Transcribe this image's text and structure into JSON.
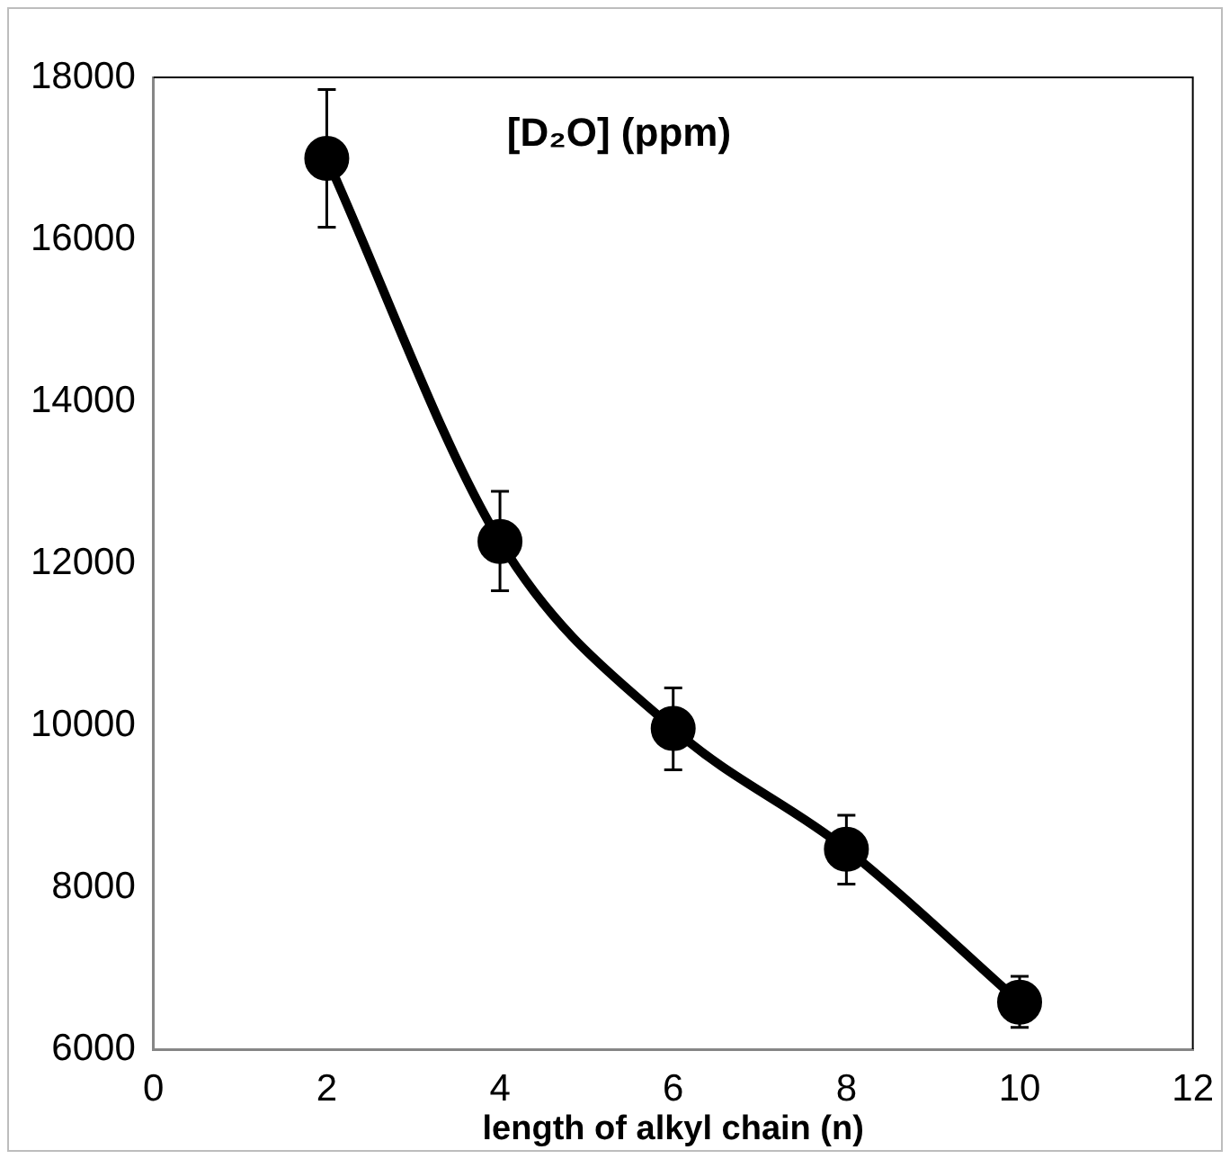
{
  "chart_data": {
    "type": "line",
    "title": "[D₂O] (ppm)",
    "xlabel": "length of alkyl chain (n)",
    "x": [
      2,
      4,
      6,
      8,
      10
    ],
    "series": [
      {
        "color": "#000000",
        "values": [
          17000,
          12270,
          9960,
          8470,
          6580
        ],
        "errors": [
          [
            16150,
            17850
          ],
          [
            11660,
            12890
          ],
          [
            9450,
            10460
          ],
          [
            8040,
            8890
          ],
          [
            6270,
            6900
          ]
        ]
      }
    ],
    "xlim": [
      0,
      12
    ],
    "xticks": [
      0,
      2,
      4,
      6,
      8,
      10,
      12
    ],
    "ylim": [
      6000,
      18000
    ],
    "yticks": [
      6000,
      8000,
      10000,
      12000,
      14000,
      16000,
      18000
    ],
    "grid": false,
    "legend": false,
    "marker": "circle",
    "line_style": "solid"
  }
}
